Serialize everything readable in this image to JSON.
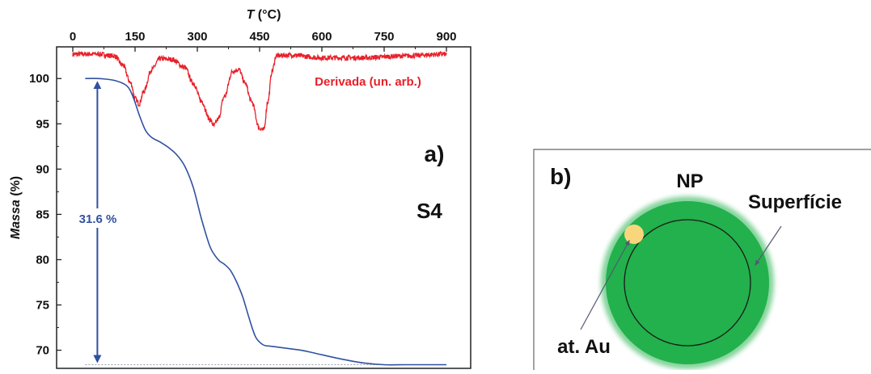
{
  "chart_data": {
    "type": "line",
    "panel_label": "a)",
    "sample_label": "S4",
    "x_axis": {
      "title_var": "T",
      "title_unit": " (°C)",
      "position": "top",
      "range": [
        0,
        900
      ],
      "ticks": [
        "0",
        "150",
        "300",
        "450",
        "600",
        "750",
        "900"
      ]
    },
    "y_axis": {
      "title_var": "Massa",
      "title_unit": " (%)",
      "range": [
        68,
        103.5
      ],
      "ticks": [
        "70",
        "75",
        "80",
        "85",
        "90",
        "95",
        "100"
      ]
    },
    "series": [
      {
        "kind": "mass",
        "color": "#3050a0",
        "x": [
          30,
          60,
          100,
          130,
          145,
          160,
          175,
          190,
          210,
          230,
          250,
          270,
          290,
          310,
          330,
          345,
          355,
          365,
          380,
          395,
          410,
          425,
          440,
          455,
          465,
          475,
          485,
          500,
          550,
          600,
          650,
          700,
          750,
          800,
          850,
          900
        ],
        "y": [
          100,
          100,
          99.8,
          99.2,
          98,
          96,
          94.3,
          93.5,
          93,
          92.4,
          91.6,
          90.3,
          88,
          84.5,
          81.5,
          80.3,
          79.8,
          79.5,
          78.8,
          77.5,
          75.8,
          73.5,
          71.5,
          70.7,
          70.5,
          70.45,
          70.4,
          70.3,
          70,
          69.5,
          69,
          68.6,
          68.4,
          68.4,
          68.4,
          68.4
        ]
      },
      {
        "name": "Derivada (un. arb.)",
        "kind": "derivative",
        "color": "#e8202a",
        "x": [
          0,
          60,
          100,
          120,
          140,
          150,
          160,
          170,
          190,
          210,
          240,
          270,
          290,
          310,
          330,
          340,
          350,
          365,
          385,
          400,
          415,
          430,
          450,
          460,
          470,
          480,
          490,
          520,
          600,
          700,
          800,
          900
        ],
        "y": [
          102.7,
          102.7,
          102.5,
          101.5,
          99.5,
          97.8,
          97.2,
          98.5,
          101,
          102.2,
          102.1,
          101.2,
          99.5,
          97.5,
          95.5,
          94.8,
          95.5,
          98,
          100.8,
          101,
          99.5,
          97.5,
          94.5,
          94.3,
          97.5,
          100.8,
          102.5,
          102.6,
          102.3,
          102.3,
          102.5,
          102.7
        ]
      }
    ],
    "annotation": {
      "text": "31.6 %",
      "x": 30,
      "from": 100,
      "to": 68.4
    },
    "baseline_y": 68.4,
    "grid": false
  },
  "diagram": {
    "panel_label": "b)",
    "np_label": "NP",
    "surface_label": "Superfície",
    "atom_label": "at. Au",
    "colors": {
      "particle": "#22b14c",
      "atom": "#f9d67c",
      "line": "#1a1a1a"
    }
  }
}
